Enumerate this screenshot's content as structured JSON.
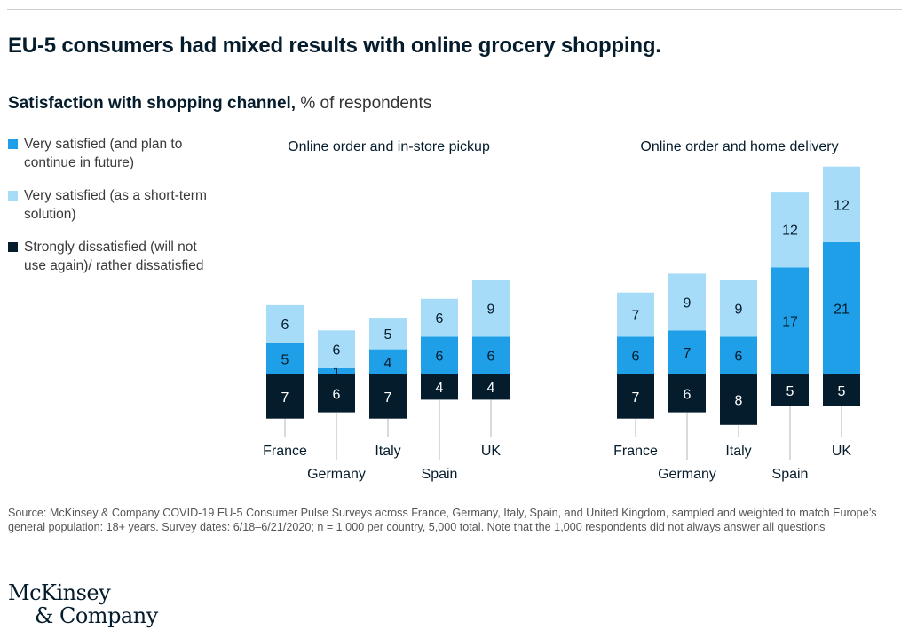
{
  "header": {
    "title": "EU-5 consumers had mixed results with online grocery shopping.",
    "subtitle_bold": "Satisfaction with shopping channel,",
    "subtitle_light": " % of respondents"
  },
  "legend": {
    "items": [
      {
        "label": "Very satisfied (and plan to continue in future)",
        "color": "#1f9fe8"
      },
      {
        "label": "Very satisfied (as a short-term solution)",
        "color": "#a6dcf8"
      },
      {
        "label": "Strongly dissatisfied (will not use again)/ rather dissatisfied",
        "color": "#051c2c"
      }
    ]
  },
  "chart_data": [
    {
      "type": "bar",
      "stacked": "diverging",
      "title": "Online order and in-store pickup",
      "categories": [
        "France",
        "Germany",
        "Italy",
        "Spain",
        "UK"
      ],
      "series": [
        {
          "name": "Very satisfied (and plan to continue in future)",
          "color": "#1f9fe8",
          "direction": "up",
          "values": [
            5,
            1,
            4,
            6,
            6
          ]
        },
        {
          "name": "Very satisfied (as a short-term solution)",
          "color": "#a6dcf8",
          "direction": "up",
          "values": [
            6,
            6,
            5,
            6,
            9
          ]
        },
        {
          "name": "Strongly dissatisfied (will not use again)/ rather dissatisfied",
          "color": "#051c2c",
          "direction": "down",
          "values": [
            7,
            6,
            7,
            4,
            4
          ]
        }
      ]
    },
    {
      "type": "bar",
      "stacked": "diverging",
      "title": "Online order and home delivery",
      "categories": [
        "France",
        "Germany",
        "Italy",
        "Spain",
        "UK"
      ],
      "series": [
        {
          "name": "Very satisfied (and plan to continue in future)",
          "color": "#1f9fe8",
          "direction": "up",
          "values": [
            6,
            7,
            6,
            17,
            21
          ]
        },
        {
          "name": "Very satisfied (as a short-term solution)",
          "color": "#a6dcf8",
          "direction": "up",
          "values": [
            7,
            9,
            9,
            12,
            12
          ]
        },
        {
          "name": "Strongly dissatisfied (will not use again)/ rather dissatisfied",
          "color": "#051c2c",
          "direction": "down",
          "values": [
            7,
            6,
            8,
            5,
            5
          ]
        }
      ]
    }
  ],
  "footer": {
    "source": "Source: McKinsey & Company COVID-19 EU-5 Consumer Pulse Surveys across France, Germany, Italy, Spain, and United Kingdom, sampled and weighted to match Europe’s general population: 18+ years. Survey dates: 6/18–6/21/2020; n = 1,000 per country, 5,000 total. Note that the 1,000 respondents did not always answer all questions",
    "logo_line1": "McKinsey",
    "logo_line2": "& Company"
  }
}
